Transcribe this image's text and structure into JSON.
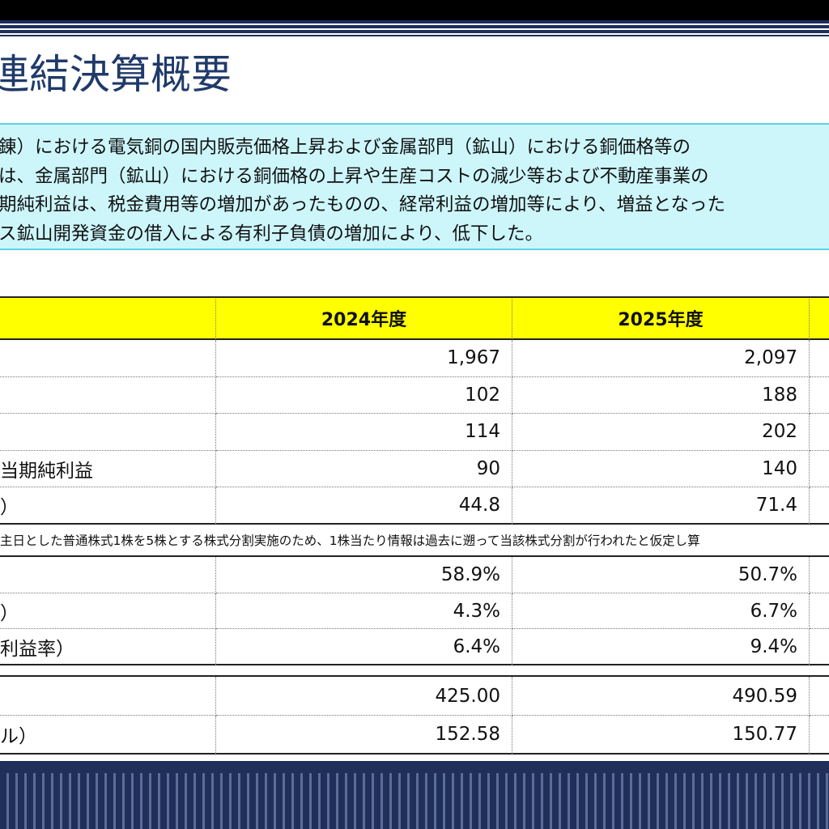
{
  "header": {
    "title": "連結決算概要"
  },
  "summary": {
    "lines": [
      "錬）における電気銅の国内販売価格上昇および金属部門（鉱山）における銅価格等の",
      "は、金属部門（鉱山）における銅価格の上昇や生産コストの減少等および不動産事業の",
      "期純利益は、税金費用等の増加があったものの、経常利益の増加等により、増益となった",
      "ス鉱山開発資金の借入による有利子負債の増加により、低下した。"
    ]
  },
  "table": {
    "header": [
      "2024年度",
      "2025年度"
    ],
    "groups": [
      {
        "rows": [
          {
            "cells": [
              "1,967",
              "2,097"
            ]
          },
          {
            "cells": [
              "102",
              "188"
            ]
          },
          {
            "cells": [
              "114",
              "202"
            ]
          },
          {
            "label": "当期純利益",
            "cells": [
              "90",
              "140"
            ]
          },
          {
            "label": "）",
            "cells": [
              "44.8",
              "71.4"
            ]
          }
        ]
      },
      {
        "rows": [
          {
            "cells": [
              "58.9%",
              "50.7%"
            ]
          },
          {
            "label": "）",
            "cells": [
              "4.3%",
              "6.7%"
            ]
          },
          {
            "label": "利益率）",
            "cells": [
              "6.4%",
              "9.4%"
            ]
          }
        ]
      },
      {
        "rows": [
          {
            "cells": [
              "425.00",
              "490.59"
            ]
          },
          {
            "label": "ル）",
            "cells": [
              "152.58",
              "150.77"
            ]
          }
        ]
      }
    ],
    "note": "主日とした普通株式1株を5株とする株式分割実施のため、1株当たり情報は過去に遡って当該株式分割が行われたと仮定し算"
  }
}
